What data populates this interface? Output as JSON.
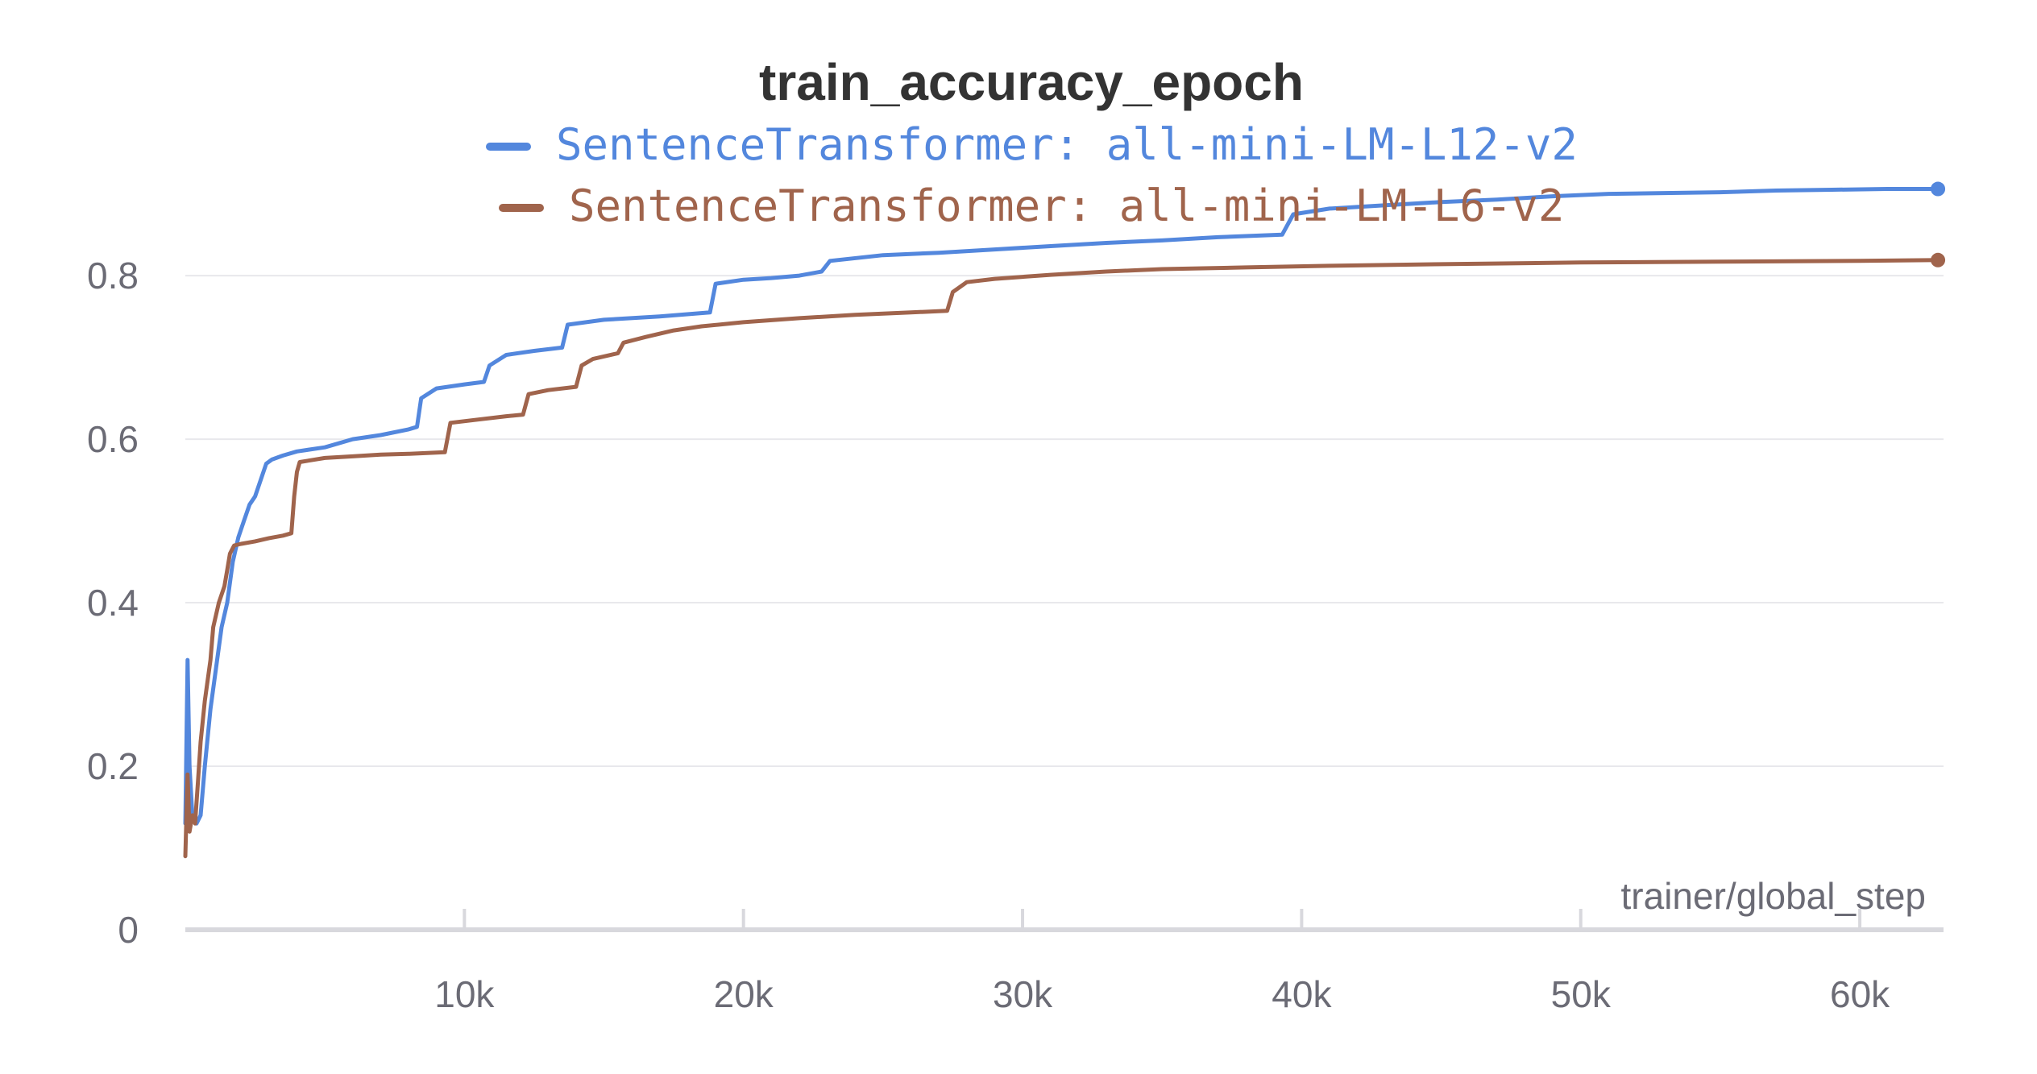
{
  "chart_data": {
    "type": "line",
    "title": "train_accuracy_epoch",
    "xlabel": "trainer/global_step",
    "ylabel": "",
    "xlim": [
      0,
      63000
    ],
    "ylim": [
      0,
      0.94
    ],
    "x_ticks": [
      10000,
      20000,
      30000,
      40000,
      50000,
      60000
    ],
    "x_tick_labels": [
      "10k",
      "20k",
      "30k",
      "40k",
      "50k",
      "60k"
    ],
    "y_ticks": [
      0,
      0.2,
      0.4,
      0.6,
      0.8
    ],
    "y_tick_labels": [
      "0",
      "0.2",
      "0.4",
      "0.6",
      "0.8"
    ],
    "grid": "horizontal",
    "legend_position": "top-center",
    "series": [
      {
        "name": "SentenceTransformer: all-mini-LM-L12-v2",
        "color": "#5387dd",
        "points": [
          [
            0,
            0.13
          ],
          [
            80,
            0.33
          ],
          [
            150,
            0.2
          ],
          [
            250,
            0.14
          ],
          [
            400,
            0.13
          ],
          [
            550,
            0.14
          ],
          [
            700,
            0.2
          ],
          [
            900,
            0.27
          ],
          [
            1100,
            0.32
          ],
          [
            1300,
            0.37
          ],
          [
            1500,
            0.4
          ],
          [
            1700,
            0.45
          ],
          [
            1900,
            0.48
          ],
          [
            2100,
            0.5
          ],
          [
            2300,
            0.52
          ],
          [
            2500,
            0.53
          ],
          [
            2700,
            0.55
          ],
          [
            2900,
            0.57
          ],
          [
            3100,
            0.575
          ],
          [
            3500,
            0.58
          ],
          [
            4000,
            0.585
          ],
          [
            5000,
            0.59
          ],
          [
            6000,
            0.6
          ],
          [
            7000,
            0.605
          ],
          [
            8000,
            0.612
          ],
          [
            8300,
            0.615
          ],
          [
            8450,
            0.65
          ],
          [
            9000,
            0.662
          ],
          [
            10000,
            0.667
          ],
          [
            10700,
            0.67
          ],
          [
            10900,
            0.69
          ],
          [
            11500,
            0.703
          ],
          [
            12500,
            0.708
          ],
          [
            13500,
            0.712
          ],
          [
            13700,
            0.74
          ],
          [
            15000,
            0.746
          ],
          [
            17000,
            0.75
          ],
          [
            18800,
            0.755
          ],
          [
            19000,
            0.79
          ],
          [
            20000,
            0.795
          ],
          [
            21000,
            0.797
          ],
          [
            22000,
            0.8
          ],
          [
            22800,
            0.805
          ],
          [
            23100,
            0.818
          ],
          [
            25000,
            0.825
          ],
          [
            27000,
            0.828
          ],
          [
            29000,
            0.832
          ],
          [
            31000,
            0.836
          ],
          [
            33000,
            0.84
          ],
          [
            35000,
            0.843
          ],
          [
            37000,
            0.847
          ],
          [
            39300,
            0.85
          ],
          [
            39700,
            0.875
          ],
          [
            41000,
            0.882
          ],
          [
            43000,
            0.886
          ],
          [
            45000,
            0.89
          ],
          [
            47000,
            0.893
          ],
          [
            49000,
            0.897
          ],
          [
            51000,
            0.9
          ],
          [
            53000,
            0.901
          ],
          [
            55000,
            0.902
          ],
          [
            57000,
            0.904
          ],
          [
            59000,
            0.905
          ],
          [
            61000,
            0.906
          ],
          [
            62800,
            0.906
          ]
        ]
      },
      {
        "name": "SentenceTransformer: all-mini-LM-L6-v2",
        "color": "#a0644c",
        "points": [
          [
            0,
            0.09
          ],
          [
            80,
            0.19
          ],
          [
            150,
            0.12
          ],
          [
            250,
            0.14
          ],
          [
            350,
            0.13
          ],
          [
            450,
            0.18
          ],
          [
            550,
            0.23
          ],
          [
            700,
            0.28
          ],
          [
            900,
            0.33
          ],
          [
            1000,
            0.37
          ],
          [
            1200,
            0.4
          ],
          [
            1400,
            0.42
          ],
          [
            1500,
            0.44
          ],
          [
            1600,
            0.46
          ],
          [
            1750,
            0.47
          ],
          [
            2000,
            0.472
          ],
          [
            2500,
            0.475
          ],
          [
            3000,
            0.479
          ],
          [
            3500,
            0.482
          ],
          [
            3800,
            0.485
          ],
          [
            3900,
            0.53
          ],
          [
            4000,
            0.56
          ],
          [
            4100,
            0.572
          ],
          [
            5000,
            0.577
          ],
          [
            6000,
            0.579
          ],
          [
            7000,
            0.581
          ],
          [
            8000,
            0.582
          ],
          [
            9300,
            0.584
          ],
          [
            9500,
            0.62
          ],
          [
            10500,
            0.624
          ],
          [
            11500,
            0.628
          ],
          [
            12100,
            0.63
          ],
          [
            12300,
            0.655
          ],
          [
            13000,
            0.66
          ],
          [
            14000,
            0.664
          ],
          [
            14200,
            0.69
          ],
          [
            14600,
            0.698
          ],
          [
            15500,
            0.705
          ],
          [
            15700,
            0.718
          ],
          [
            16500,
            0.725
          ],
          [
            17500,
            0.733
          ],
          [
            18500,
            0.738
          ],
          [
            20000,
            0.743
          ],
          [
            22000,
            0.748
          ],
          [
            24000,
            0.752
          ],
          [
            26000,
            0.755
          ],
          [
            27300,
            0.757
          ],
          [
            27500,
            0.78
          ],
          [
            28000,
            0.792
          ],
          [
            29000,
            0.796
          ],
          [
            31000,
            0.801
          ],
          [
            33000,
            0.805
          ],
          [
            35000,
            0.808
          ],
          [
            38000,
            0.81
          ],
          [
            41000,
            0.812
          ],
          [
            45000,
            0.814
          ],
          [
            50000,
            0.816
          ],
          [
            55000,
            0.817
          ],
          [
            60000,
            0.818
          ],
          [
            62800,
            0.819
          ]
        ]
      }
    ]
  }
}
